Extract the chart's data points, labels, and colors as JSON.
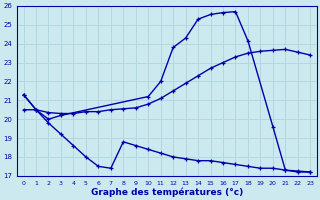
{
  "xlabel": "Graphe des températures (°c)",
  "xlim": [
    -0.5,
    23.5
  ],
  "ylim": [
    17,
    26
  ],
  "yticks": [
    17,
    18,
    19,
    20,
    21,
    22,
    23,
    24,
    25,
    26
  ],
  "xticks": [
    0,
    1,
    2,
    3,
    4,
    5,
    6,
    7,
    8,
    9,
    10,
    11,
    12,
    13,
    14,
    15,
    16,
    17,
    18,
    19,
    20,
    21,
    22,
    23
  ],
  "bg_color": "#cde9f0",
  "line_color": "#0000aa",
  "grid_color": "#b0d8e0",
  "line1_x": [
    0,
    1,
    2,
    3,
    10,
    11,
    12,
    13,
    14,
    15,
    16,
    17,
    18,
    20,
    21,
    22,
    23
  ],
  "line1_y": [
    21.3,
    20.5,
    20.0,
    20.2,
    21.2,
    22.0,
    23.8,
    24.3,
    25.3,
    25.55,
    25.65,
    25.7,
    24.15,
    19.6,
    17.3,
    17.2,
    17.2
  ],
  "line2_x": [
    0,
    1,
    2,
    3,
    4,
    5,
    6,
    7,
    8,
    9,
    10,
    11,
    12,
    13,
    14,
    15,
    16,
    17,
    18,
    19,
    20,
    21,
    22,
    23
  ],
  "line2_y": [
    20.5,
    20.5,
    20.35,
    20.3,
    20.3,
    20.4,
    20.4,
    20.5,
    20.55,
    20.6,
    20.8,
    21.1,
    21.5,
    21.9,
    22.3,
    22.7,
    23.0,
    23.3,
    23.5,
    23.6,
    23.65,
    23.7,
    23.55,
    23.4
  ],
  "line3_x": [
    0,
    1,
    2,
    3,
    4,
    5,
    6,
    7,
    8,
    9,
    10,
    11,
    12,
    13,
    14,
    15,
    16,
    17,
    18,
    19,
    20,
    21,
    22,
    23
  ],
  "line3_y": [
    21.3,
    20.5,
    19.8,
    19.2,
    18.6,
    18.0,
    17.5,
    17.4,
    18.8,
    18.6,
    18.4,
    18.2,
    18.0,
    17.9,
    17.8,
    17.8,
    17.7,
    17.6,
    17.5,
    17.4,
    17.4,
    17.3,
    17.25,
    17.2
  ]
}
